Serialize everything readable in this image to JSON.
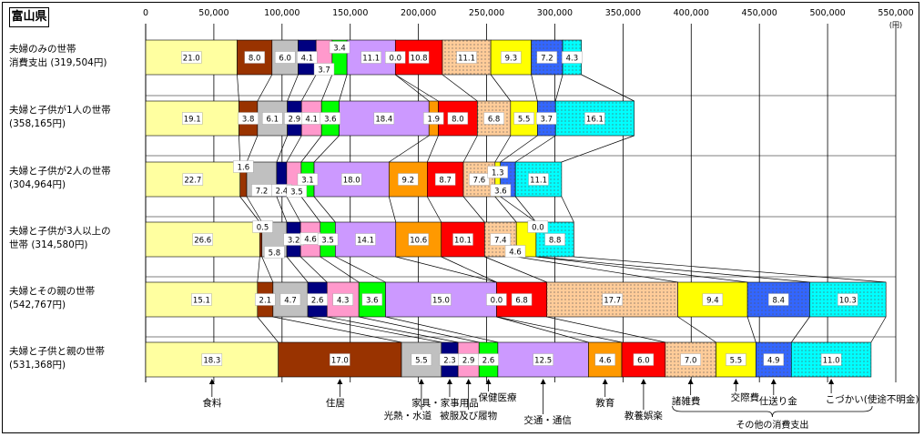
{
  "prefecture": "富山県",
  "chart_data": {
    "type": "bar",
    "orientation": "horizontal-stacked",
    "unit": "(円)",
    "xlim": [
      0,
      550000
    ],
    "x_ticks": [
      "0",
      "50,000",
      "100,000",
      "150,000",
      "200,000",
      "250,000",
      "300,000",
      "350,000",
      "400,000",
      "450,000",
      "500,000",
      "550,000"
    ],
    "grid": true,
    "categories": [
      {
        "line1": "夫婦のみの世帯",
        "line2": "消費支出 (319,504円)"
      },
      {
        "line1": "夫婦と子供が1人の世帯",
        "line2": "(358,165円)"
      },
      {
        "line1": "夫婦と子供が2人の世帯",
        "line2": "(304,964円)"
      },
      {
        "line1": "夫婦と子供が3人以上の",
        "line2": "世帯 (314,580円)"
      },
      {
        "line1": "夫婦とその親の世帯",
        "line2": "(542,767円)"
      },
      {
        "line1": "夫婦と子供と親の世帯",
        "line2": "(531,368円)"
      }
    ],
    "totals": [
      319504,
      358165,
      304964,
      314580,
      542767,
      531368
    ],
    "series": [
      {
        "name": "食料",
        "color": "#FFFFA0",
        "pattern": "none",
        "values": [
          "21.0",
          "19.1",
          "22.7",
          "26.6",
          "15.1",
          "18.3"
        ]
      },
      {
        "name": "住居",
        "color": "#993300",
        "pattern": "none",
        "values": [
          "8.0",
          "3.8",
          "1.6",
          "0.5",
          "2.1",
          "17.0"
        ]
      },
      {
        "name": "光熱・水道",
        "color": "#C0C0C0",
        "pattern": "none",
        "values": [
          "6.0",
          "6.1",
          "7.2",
          "5.8",
          "4.7",
          "5.5"
        ]
      },
      {
        "name": "家具・家事用品",
        "color": "#000080",
        "pattern": "none",
        "values": [
          "4.1",
          "2.9",
          "2.4",
          "3.2",
          "2.6",
          "2.3"
        ]
      },
      {
        "name": "被服及び履物",
        "color": "#FF99CC",
        "pattern": "none",
        "values": [
          "3.7",
          "4.1",
          "3.5",
          "4.6",
          "4.3",
          "2.9"
        ]
      },
      {
        "name": "保健医療",
        "color": "#00FF00",
        "pattern": "none",
        "values": [
          "3.4",
          "3.6",
          "3.1",
          "3.5",
          "3.6",
          "2.6"
        ]
      },
      {
        "name": "交通・通信",
        "color": "#CC99FF",
        "pattern": "none",
        "values": [
          "11.1",
          "18.4",
          "18.0",
          "14.1",
          "15.0",
          "12.5"
        ]
      },
      {
        "name": "教育",
        "color": "#FF9900",
        "pattern": "none",
        "values": [
          "0.0",
          "1.9",
          "9.2",
          "10.6",
          "0.0",
          "4.6"
        ]
      },
      {
        "name": "教養娯楽",
        "color": "#FF0000",
        "pattern": "none",
        "values": [
          "10.8",
          "8.0",
          "8.7",
          "10.1",
          "6.8",
          "6.0"
        ]
      },
      {
        "name": "諸雑費",
        "color": "#FFCC99",
        "pattern": "dots",
        "values": [
          "11.1",
          "6.8",
          "7.6",
          "7.4",
          "17.7",
          "7.0"
        ]
      },
      {
        "name": "交際費",
        "color": "#FFFF00",
        "pattern": "none",
        "values": [
          "9.3",
          "5.5",
          "1.3",
          "4.6",
          "9.4",
          "5.5"
        ]
      },
      {
        "name": "仕送り金",
        "color": "#3366FF",
        "pattern": "dots",
        "values": [
          "7.2",
          "3.7",
          "3.6",
          "0.0",
          "8.4",
          "4.9"
        ]
      },
      {
        "name": "こづかい(使途不明金)",
        "color": "#00FFFF",
        "pattern": "dots",
        "values": [
          "4.3",
          "16.1",
          "11.1",
          "8.8",
          "10.3",
          "11.0"
        ]
      }
    ],
    "bottom_labels": [
      {
        "series": 0,
        "text": "食料"
      },
      {
        "series": 1,
        "text": "住居"
      },
      {
        "series": 2,
        "text": "光熱・水道"
      },
      {
        "series": 3,
        "text": "家具・家事用品"
      },
      {
        "series": 4,
        "text": "被服及び履物"
      },
      {
        "series": 5,
        "text": "保健医療"
      },
      {
        "series": 6,
        "text": "交通・通信"
      },
      {
        "series": 7,
        "text": "教育"
      },
      {
        "series": 8,
        "text": "教養娯楽"
      },
      {
        "series": 9,
        "text": "諸雑費"
      },
      {
        "series": 10,
        "text": "交際費"
      },
      {
        "series": 11,
        "text": "仕送り金"
      },
      {
        "series": 12,
        "text": "こづかい(使途不明金)"
      }
    ],
    "group_label": "その他の消費支出"
  }
}
